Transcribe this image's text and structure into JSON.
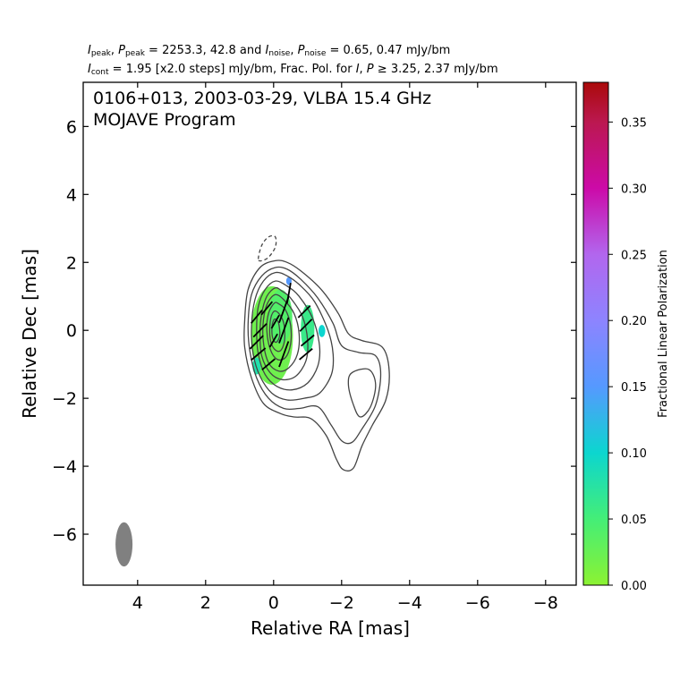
{
  "header": {
    "line1": {
      "ipeak_label": "I",
      "ipeak_sub": "peak",
      "ppeak_label": "P",
      "ppeak_sub": "peak",
      "peak_values": "2253.3, 42.8",
      "inoise_label": "I",
      "inoise_sub": "noise",
      "pnoise_label": "P",
      "pnoise_sub": "noise",
      "noise_values": "0.65, 0.47",
      "unit": "mJy/bm"
    },
    "line2": {
      "icont_label": "I",
      "icont_sub": "cont",
      "icont_value": "1.95 [x2.0 steps] mJy/bm",
      "frac_text": "Frac. Pol. for",
      "i_label": "I",
      "p_label": "P",
      "geq": "≥",
      "thresholds": "3.25, 2.37 mJy/bm"
    }
  },
  "title": {
    "line1": "0106+013, 2003-03-29, VLBA 15.4 GHz",
    "line2": "MOJAVE Program"
  },
  "chart_data": {
    "type": "contour",
    "source": "0106+013",
    "date": "2003-03-29",
    "instrument": "VLBA 15.4 GHz",
    "program": "MOJAVE Program",
    "xlabel": "Relative RA [mas]",
    "ylabel": "Relative Dec [mas]",
    "xlim": [
      5.6,
      -8.9
    ],
    "ylim": [
      -7.5,
      7.3
    ],
    "xticks": [
      4,
      2,
      0,
      -2,
      -4,
      -6,
      -8
    ],
    "yticks": [
      6,
      4,
      2,
      0,
      -2,
      -4,
      -6
    ],
    "xtick_labels": [
      "4",
      "2",
      "0",
      "−2",
      "−4",
      "−6",
      "−8"
    ],
    "ytick_labels": [
      "6",
      "4",
      "2",
      "0",
      "−2",
      "−4",
      "−6"
    ],
    "I_peak_mJy_per_beam": 2253.3,
    "P_peak_mJy_per_beam": 42.8,
    "I_noise_mJy_per_beam": 0.65,
    "P_noise_mJy_per_beam": 0.47,
    "I_contour_base_mJy_per_beam": 1.95,
    "contour_step_factor": 2.0,
    "frac_pol_threshold_I_mJy_per_beam": 3.25,
    "frac_pol_threshold_P_mJy_per_beam": 2.37,
    "beam": {
      "ra": 4.4,
      "dec": -6.3,
      "major": 1.3,
      "minor": 0.5,
      "pa_deg": 0
    },
    "colorbar": {
      "label": "Fractional Linear Polarization",
      "vmin": 0.0,
      "vmax": 0.38,
      "ticks": [
        0.0,
        0.05,
        0.1,
        0.15,
        0.2,
        0.25,
        0.3,
        0.35
      ],
      "tick_labels": [
        "0.00",
        "0.05",
        "0.10",
        "0.15",
        "0.20",
        "0.25",
        "0.30",
        "0.35"
      ],
      "stops": [
        {
          "v": 0.0,
          "color": "#8cf232"
        },
        {
          "v": 0.05,
          "color": "#44ee77"
        },
        {
          "v": 0.1,
          "color": "#0cd6cf"
        },
        {
          "v": 0.15,
          "color": "#5599ff"
        },
        {
          "v": 0.2,
          "color": "#8d84ff"
        },
        {
          "v": 0.25,
          "color": "#b266ee"
        },
        {
          "v": 0.3,
          "color": "#cc0aa8"
        },
        {
          "v": 0.35,
          "color": "#bb1850"
        },
        {
          "v": 0.38,
          "color": "#aa0a0a"
        }
      ]
    },
    "contour_color": "#444444",
    "pol_patches": [
      {
        "ra": 0.05,
        "dec": -0.15,
        "rx": 0.62,
        "ry": 1.45,
        "frac": 0.02
      },
      {
        "ra": -0.2,
        "dec": 0.4,
        "rx": 0.35,
        "ry": 0.8,
        "frac": 0.04
      },
      {
        "ra": -1.0,
        "dec": 0.05,
        "rx": 0.2,
        "ry": 0.7,
        "frac": 0.06
      },
      {
        "ra": -1.42,
        "dec": -0.02,
        "rx": 0.1,
        "ry": 0.18,
        "frac": 0.1
      },
      {
        "ra": -0.45,
        "dec": 1.45,
        "rx": 0.08,
        "ry": 0.12,
        "frac": 0.15
      },
      {
        "ra": 0.5,
        "dec": -1.05,
        "rx": 0.12,
        "ry": 0.25,
        "frac": 0.08
      }
    ],
    "evpa_ticks": [
      {
        "ra": 0.4,
        "dec": 0.0,
        "angle": 45,
        "len": 0.55
      },
      {
        "ra": 0.5,
        "dec": -0.35,
        "angle": 45,
        "len": 0.55
      },
      {
        "ra": 0.45,
        "dec": -0.7,
        "angle": 40,
        "len": 0.55
      },
      {
        "ra": 0.5,
        "dec": 0.4,
        "angle": 50,
        "len": 0.5
      },
      {
        "ra": 0.2,
        "dec": 0.65,
        "angle": 50,
        "len": 0.5
      },
      {
        "ra": 0.15,
        "dec": -1.0,
        "angle": 40,
        "len": 0.5
      },
      {
        "ra": -0.3,
        "dec": 0.6,
        "angle": 70,
        "len": 0.8
      },
      {
        "ra": -0.3,
        "dec": 0.0,
        "angle": 70,
        "len": 0.8
      },
      {
        "ra": -0.3,
        "dec": -0.7,
        "angle": 70,
        "len": 0.8
      },
      {
        "ra": 0.0,
        "dec": -0.3,
        "angle": 60,
        "len": 0.45
      },
      {
        "ra": -0.05,
        "dec": 0.25,
        "angle": 60,
        "len": 0.45
      },
      {
        "ra": -0.9,
        "dec": 0.55,
        "angle": 45,
        "len": 0.5
      },
      {
        "ra": -0.95,
        "dec": 0.15,
        "angle": 45,
        "len": 0.5
      },
      {
        "ra": -1.0,
        "dec": -0.3,
        "angle": 40,
        "len": 0.5
      },
      {
        "ra": -0.95,
        "dec": -0.7,
        "angle": 40,
        "len": 0.5
      },
      {
        "ra": -0.45,
        "dec": 1.1,
        "angle": 80,
        "len": 0.6
      }
    ],
    "contours": [
      {
        "level": 1,
        "style": "solid",
        "points": [
          [
            -0.05,
            2.05
          ],
          [
            0.4,
            1.85
          ],
          [
            0.75,
            1.2
          ],
          [
            0.85,
            0.3
          ],
          [
            0.85,
            -0.5
          ],
          [
            0.65,
            -1.4
          ],
          [
            0.3,
            -2.15
          ],
          [
            -0.2,
            -2.45
          ],
          [
            -0.6,
            -2.55
          ],
          [
            -1.1,
            -2.6
          ],
          [
            -1.55,
            -3.1
          ],
          [
            -1.85,
            -3.8
          ],
          [
            -2.05,
            -4.1
          ],
          [
            -2.35,
            -4.05
          ],
          [
            -2.6,
            -3.4
          ],
          [
            -2.9,
            -2.8
          ],
          [
            -3.3,
            -2.05
          ],
          [
            -3.4,
            -1.2
          ],
          [
            -3.2,
            -0.5
          ],
          [
            -2.6,
            -0.3
          ],
          [
            -2.2,
            -0.1
          ],
          [
            -1.9,
            0.5
          ],
          [
            -1.4,
            1.2
          ],
          [
            -0.8,
            1.75
          ],
          [
            -0.4,
            2.0
          ]
        ]
      },
      {
        "level": 2,
        "style": "solid",
        "points": [
          [
            -0.05,
            1.85
          ],
          [
            0.35,
            1.6
          ],
          [
            0.65,
            1.05
          ],
          [
            0.75,
            0.2
          ],
          [
            0.7,
            -0.6
          ],
          [
            0.5,
            -1.4
          ],
          [
            0.15,
            -2.0
          ],
          [
            -0.3,
            -2.3
          ],
          [
            -0.75,
            -2.3
          ],
          [
            -1.3,
            -2.25
          ],
          [
            -1.7,
            -2.8
          ],
          [
            -2.0,
            -3.25
          ],
          [
            -2.3,
            -3.3
          ],
          [
            -2.6,
            -2.9
          ],
          [
            -3.0,
            -2.2
          ],
          [
            -3.15,
            -1.3
          ],
          [
            -3.0,
            -0.75
          ],
          [
            -2.5,
            -0.65
          ],
          [
            -2.0,
            -0.45
          ],
          [
            -1.75,
            0.2
          ],
          [
            -1.3,
            0.95
          ],
          [
            -0.8,
            1.5
          ],
          [
            -0.4,
            1.8
          ]
        ]
      },
      {
        "level": 3,
        "style": "solid",
        "points": [
          [
            -0.05,
            1.7
          ],
          [
            0.3,
            1.45
          ],
          [
            0.55,
            0.9
          ],
          [
            0.65,
            0.1
          ],
          [
            0.6,
            -0.7
          ],
          [
            0.4,
            -1.35
          ],
          [
            0.05,
            -1.85
          ],
          [
            -0.4,
            -2.05
          ],
          [
            -0.9,
            -2.0
          ],
          [
            -1.35,
            -1.85
          ],
          [
            -1.7,
            -1.3
          ],
          [
            -1.75,
            -0.7
          ],
          [
            -1.6,
            0.0
          ],
          [
            -1.2,
            0.85
          ],
          [
            -0.75,
            1.35
          ],
          [
            -0.4,
            1.6
          ]
        ]
      },
      {
        "level": 4,
        "style": "solid",
        "points": [
          [
            -2.3,
            -1.25
          ],
          [
            -2.8,
            -1.15
          ],
          [
            -3.0,
            -1.6
          ],
          [
            -2.85,
            -2.25
          ],
          [
            -2.55,
            -2.55
          ],
          [
            -2.35,
            -2.2
          ],
          [
            -2.2,
            -1.6
          ]
        ]
      },
      {
        "level": 5,
        "style": "solid",
        "points": [
          [
            -0.05,
            1.45
          ],
          [
            0.25,
            1.2
          ],
          [
            0.45,
            0.7
          ],
          [
            0.5,
            0.0
          ],
          [
            0.45,
            -0.7
          ],
          [
            0.25,
            -1.3
          ],
          [
            -0.1,
            -1.65
          ],
          [
            -0.55,
            -1.75
          ],
          [
            -1.0,
            -1.55
          ],
          [
            -1.3,
            -1.05
          ],
          [
            -1.35,
            -0.45
          ],
          [
            -1.15,
            0.35
          ],
          [
            -0.75,
            1.0
          ],
          [
            -0.4,
            1.3
          ]
        ]
      },
      {
        "level": 6,
        "style": "solid",
        "points": [
          [
            -0.05,
            1.25
          ],
          [
            0.2,
            1.0
          ],
          [
            0.35,
            0.5
          ],
          [
            0.4,
            -0.1
          ],
          [
            0.35,
            -0.75
          ],
          [
            0.1,
            -1.25
          ],
          [
            -0.25,
            -1.45
          ],
          [
            -0.65,
            -1.35
          ],
          [
            -0.95,
            -0.9
          ],
          [
            -1.0,
            -0.3
          ],
          [
            -0.85,
            0.4
          ],
          [
            -0.5,
            0.95
          ],
          [
            -0.25,
            1.15
          ]
        ]
      },
      {
        "level": 7,
        "style": "solid",
        "points": [
          [
            -0.05,
            1.05
          ],
          [
            0.18,
            0.8
          ],
          [
            0.3,
            0.3
          ],
          [
            0.3,
            -0.35
          ],
          [
            0.15,
            -0.95
          ],
          [
            -0.15,
            -1.2
          ],
          [
            -0.45,
            -1.1
          ],
          [
            -0.7,
            -0.7
          ],
          [
            -0.75,
            -0.1
          ],
          [
            -0.6,
            0.5
          ],
          [
            -0.3,
            0.9
          ]
        ]
      },
      {
        "level": 8,
        "style": "solid",
        "points": [
          [
            -0.02,
            0.8
          ],
          [
            0.15,
            0.5
          ],
          [
            0.2,
            0.0
          ],
          [
            0.1,
            -0.55
          ],
          [
            -0.1,
            -0.85
          ],
          [
            -0.35,
            -0.8
          ],
          [
            -0.5,
            -0.4
          ],
          [
            -0.5,
            0.15
          ],
          [
            -0.35,
            0.6
          ],
          [
            -0.15,
            0.78
          ]
        ]
      },
      {
        "level": 9,
        "style": "solid",
        "points": [
          [
            0.0,
            0.55
          ],
          [
            0.1,
            0.25
          ],
          [
            0.1,
            -0.25
          ],
          [
            -0.02,
            -0.55
          ],
          [
            -0.2,
            -0.6
          ],
          [
            -0.32,
            -0.3
          ],
          [
            -0.3,
            0.2
          ],
          [
            -0.15,
            0.5
          ]
        ]
      },
      {
        "level": 10,
        "style": "solid",
        "points": [
          [
            0.0,
            0.3
          ],
          [
            0.05,
            0.05
          ],
          [
            0.02,
            -0.25
          ],
          [
            -0.08,
            -0.35
          ],
          [
            -0.18,
            -0.15
          ],
          [
            -0.15,
            0.2
          ],
          [
            -0.07,
            0.32
          ]
        ]
      },
      {
        "level": -1,
        "style": "dashed",
        "points": [
          [
            0.45,
            2.1
          ],
          [
            0.35,
            2.5
          ],
          [
            0.15,
            2.75
          ],
          [
            -0.05,
            2.75
          ],
          [
            -0.05,
            2.45
          ],
          [
            0.15,
            2.15
          ],
          [
            0.35,
            2.05
          ]
        ]
      }
    ]
  }
}
